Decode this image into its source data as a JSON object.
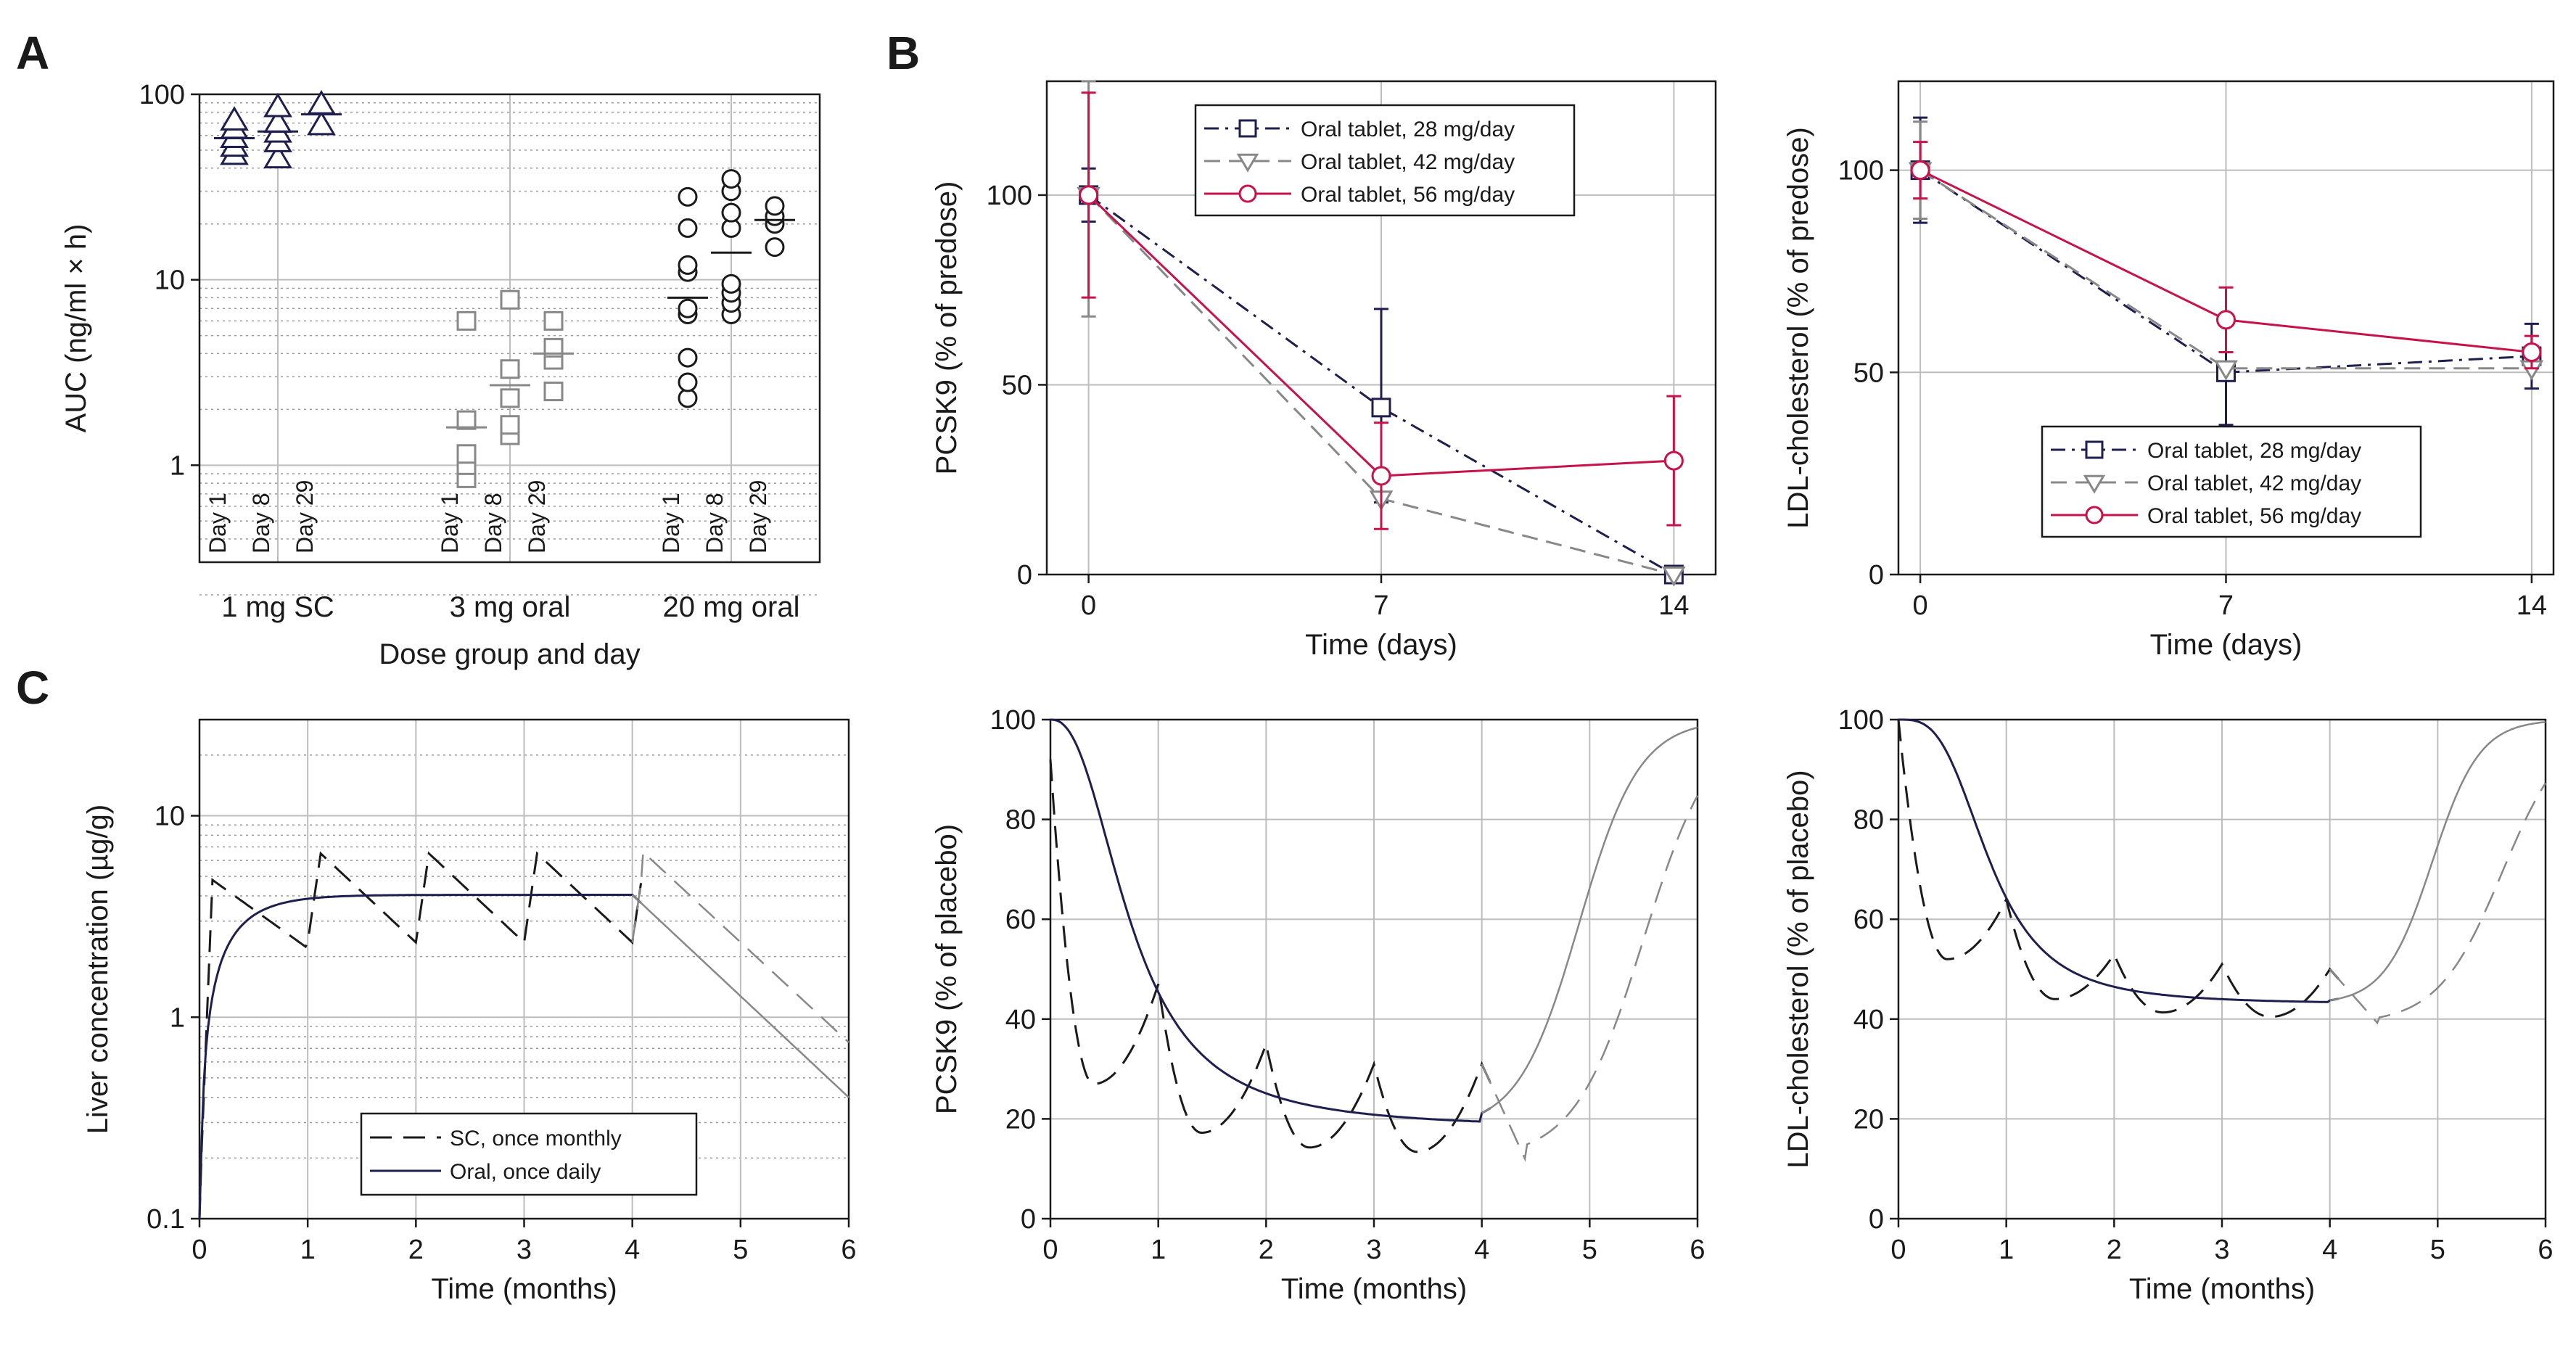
{
  "colors": {
    "navy": "#1f1f4f",
    "grey": "#888888",
    "crimson": "#c8124a",
    "grid": "#bdbdbd",
    "minorGrid": "#9a9a9a",
    "black": "#1a1a1a"
  },
  "panel_letters": {
    "A": "A",
    "B": "B",
    "C": "C"
  },
  "chart_data": [
    {
      "id": "A",
      "type": "scatter",
      "panel_letter": "A",
      "ylabel": "AUC (ng/ml × h)",
      "xlabel": "Dose group and day",
      "yscale": "log",
      "ylim": [
        0.3,
        100
      ],
      "yticks": [
        1,
        10,
        100
      ],
      "ytick_labels": [
        "1",
        "10",
        "100"
      ],
      "groups": [
        {
          "name": "1 mg SC",
          "marker": "triangle",
          "color": "navy",
          "days": [
            {
              "label": "Day 1",
              "values": [
                47,
                52,
                58,
                65,
                72
              ],
              "mean": 58
            },
            {
              "label": "Day 8",
              "values": [
                45,
                55,
                62,
                70,
                85
              ],
              "mean": 63
            },
            {
              "label": "Day 29",
              "values": [
                68,
                88
              ],
              "mean": 78
            }
          ]
        },
        {
          "name": "3 mg oral",
          "marker": "square",
          "color": "grey",
          "days": [
            {
              "label": "Day 1",
              "values": [
                0.85,
                1.0,
                1.15,
                1.75,
                6.0
              ],
              "mean": 1.6
            },
            {
              "label": "Day 8",
              "values": [
                1.45,
                1.65,
                2.3,
                3.3,
                7.8
              ],
              "mean": 2.7
            },
            {
              "label": "Day 29",
              "values": [
                2.5,
                3.7,
                4.3,
                6.0
              ],
              "mean": 4.0
            }
          ]
        },
        {
          "name": "20 mg oral",
          "marker": "circle",
          "color": "black",
          "days": [
            {
              "label": "Day 1",
              "values": [
                2.3,
                2.8,
                3.8,
                6.5,
                7.0,
                11.0,
                12.0,
                19.0,
                28.0
              ],
              "mean": 8.0
            },
            {
              "label": "Day 8",
              "values": [
                6.5,
                7.5,
                8.5,
                9.5,
                19.0,
                23.0,
                30.0,
                35.0
              ],
              "mean": 14.0
            },
            {
              "label": "Day 29",
              "values": [
                15.0,
                20.0,
                22.0,
                25.0
              ],
              "mean": 21.0
            }
          ]
        }
      ]
    },
    {
      "id": "B1",
      "type": "line",
      "panel_letter": "B",
      "ylabel": "PCSK9 (% of predose)",
      "xlabel": "Time (days)",
      "xlim": [
        -1,
        15
      ],
      "ylim": [
        0,
        130
      ],
      "xticks": [
        0,
        7,
        14
      ],
      "yticks": [
        0,
        50,
        100
      ],
      "legend_position": "top",
      "series": [
        {
          "name": "Oral tablet, 28 mg/day",
          "color": "navy",
          "dash": "dashdot",
          "marker": "square",
          "x": [
            0,
            7,
            14
          ],
          "y": [
            100,
            44,
            0
          ],
          "err_lo": [
            93,
            19,
            null
          ],
          "err_hi": [
            107,
            70,
            null
          ]
        },
        {
          "name": "Oral tablet, 42 mg/day",
          "color": "grey",
          "dash": "dash",
          "marker": "triangle-down",
          "x": [
            0,
            7,
            14
          ],
          "y": [
            100,
            20,
            0
          ],
          "err_lo": [
            68,
            null,
            null
          ],
          "err_hi": [
            130,
            null,
            null
          ]
        },
        {
          "name": "Oral tablet, 56 mg/day",
          "color": "crimson",
          "dash": "solid",
          "marker": "circle",
          "x": [
            0,
            7,
            14
          ],
          "y": [
            100,
            26,
            30
          ],
          "err_lo": [
            73,
            12,
            13
          ],
          "err_hi": [
            127,
            40,
            47
          ]
        }
      ]
    },
    {
      "id": "B2",
      "type": "line",
      "ylabel": "LDL-cholesterol (% of predose)",
      "xlabel": "Time (days)",
      "xlim": [
        -0.5,
        14.5
      ],
      "ylim": [
        0,
        122
      ],
      "xticks": [
        0,
        7,
        14
      ],
      "yticks": [
        0,
        50,
        100
      ],
      "legend_position": "bottom-right",
      "series": [
        {
          "name": "Oral tablet, 28 mg/day",
          "color": "navy",
          "dash": "dashdot",
          "marker": "square",
          "x": [
            0,
            7,
            14
          ],
          "y": [
            100,
            50,
            54
          ],
          "err_lo": [
            87,
            37,
            46
          ],
          "err_hi": [
            113,
            63,
            62
          ]
        },
        {
          "name": "Oral tablet, 42 mg/day",
          "color": "grey",
          "dash": "dash",
          "marker": "triangle-down",
          "x": [
            0,
            7,
            14
          ],
          "y": [
            100,
            51,
            51
          ],
          "err_lo": [
            88,
            null,
            null
          ],
          "err_hi": [
            112,
            null,
            null
          ]
        },
        {
          "name": "Oral tablet, 56 mg/day",
          "color": "crimson",
          "dash": "solid",
          "marker": "circle",
          "x": [
            0,
            7,
            14
          ],
          "y": [
            100,
            63,
            55
          ],
          "err_lo": [
            93,
            55,
            51
          ],
          "err_hi": [
            107,
            71,
            59
          ]
        }
      ]
    },
    {
      "id": "C1",
      "type": "line",
      "panel_letter": "C",
      "ylabel": "Liver concentration (µg/g)",
      "xlabel": "Time (months)",
      "yscale": "log",
      "xlim": [
        0,
        6
      ],
      "ylim": [
        0.1,
        30
      ],
      "xticks": [
        0,
        1,
        2,
        3,
        4,
        5,
        6
      ],
      "yticks": [
        0.1,
        1,
        10
      ],
      "ytick_labels": [
        "0.1",
        "1",
        "10"
      ],
      "legend_position": "bottom-center",
      "series": [
        {
          "name": "SC, once monthly",
          "color": "black",
          "dash": "longdash",
          "model": "sc_conc"
        },
        {
          "name": "Oral, once daily",
          "color": "navy",
          "dash": "solid",
          "model": "oral_conc"
        }
      ]
    },
    {
      "id": "C2",
      "type": "line",
      "ylabel": "PCSK9 (% of placebo)",
      "xlabel": "Time (months)",
      "xlim": [
        0,
        6
      ],
      "ylim": [
        0,
        100
      ],
      "xticks": [
        0,
        1,
        2,
        3,
        4,
        5,
        6
      ],
      "yticks": [
        0,
        20,
        40,
        60,
        80,
        100
      ],
      "series": [
        {
          "name": "SC, once monthly",
          "color": "black",
          "dash": "longdash",
          "model": "sc_pcsk9"
        },
        {
          "name": "Oral, once daily",
          "color": "navy",
          "dash": "solid",
          "model": "oral_pcsk9"
        }
      ]
    },
    {
      "id": "C3",
      "type": "line",
      "ylabel": "LDL-cholesterol (% of placebo)",
      "xlabel": "Time (months)",
      "xlim": [
        0,
        6
      ],
      "ylim": [
        0,
        100
      ],
      "xticks": [
        0,
        1,
        2,
        3,
        4,
        5,
        6
      ],
      "yticks": [
        0,
        20,
        40,
        60,
        80,
        100
      ],
      "series": [
        {
          "name": "SC, once monthly",
          "color": "black",
          "dash": "longdash",
          "model": "sc_ldl"
        },
        {
          "name": "Oral, once daily",
          "color": "navy",
          "dash": "solid",
          "model": "oral_ldl"
        }
      ]
    }
  ]
}
